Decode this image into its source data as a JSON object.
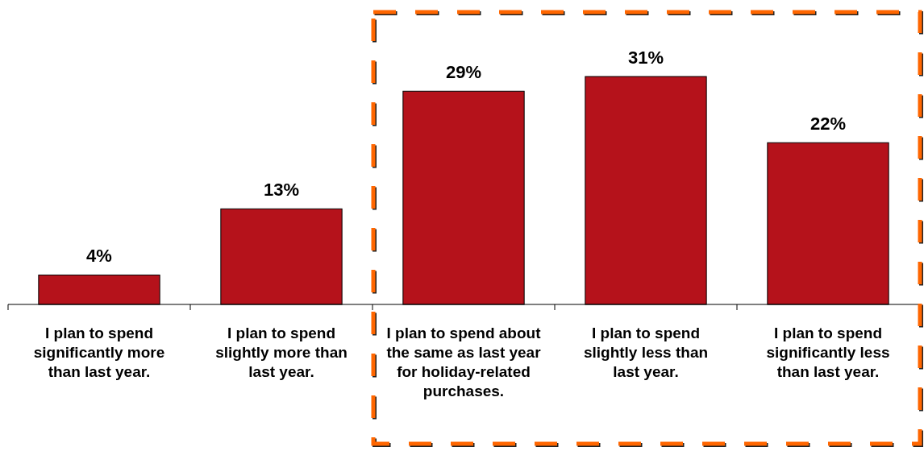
{
  "chart_data": {
    "type": "bar",
    "categories": [
      "I plan to spend significantly more than last year.",
      "I plan to spend slightly more than last year.",
      "I plan to spend about the same as last year for holiday-related purchases.",
      "I plan to spend slightly less than last year.",
      "I plan to spend significantly less than last year."
    ],
    "values": [
      4,
      13,
      29,
      31,
      22
    ],
    "color": "#b5121b",
    "value_labels": [
      "4%",
      "13%",
      "29%",
      "31%",
      "22%"
    ],
    "tick_labels": "x"
  }
}
